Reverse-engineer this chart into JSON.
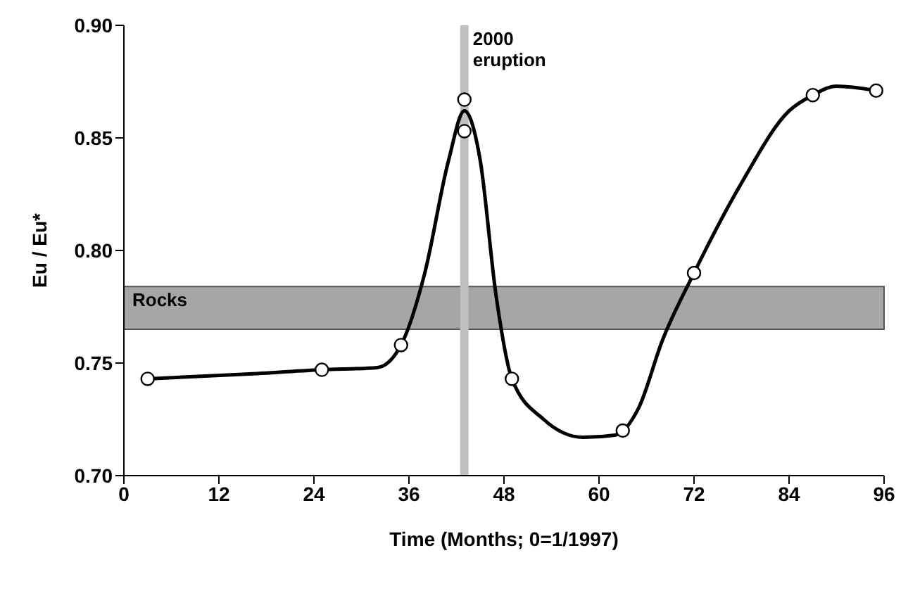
{
  "chart_data": {
    "type": "scatter",
    "xlabel": "Time (Months; 0=1/1997)",
    "ylabel": "Eu / Eu*",
    "xlim": [
      0,
      96
    ],
    "xticks": [
      0,
      12,
      24,
      36,
      48,
      60,
      72,
      84,
      96
    ],
    "ylim": [
      0.7,
      0.9
    ],
    "yticks": [
      {
        "value": 0.7,
        "label": "0.70"
      },
      {
        "value": 0.75,
        "label": "0.75"
      },
      {
        "value": 0.8,
        "label": "0.80"
      },
      {
        "value": 0.85,
        "label": "0.85"
      },
      {
        "value": 0.9,
        "label": "0.90"
      }
    ],
    "grid": false,
    "legend": false,
    "bands": [
      {
        "axis": "y",
        "from": 0.765,
        "to": 0.784,
        "label": "Rocks",
        "color": "#a6a6a6"
      }
    ],
    "ref_lines": [
      {
        "axis": "x",
        "value": 43,
        "label": "2000\neruption",
        "color": "#bfbfbf"
      }
    ],
    "series": [
      {
        "type": "line",
        "color": "#000000",
        "marker": "none",
        "line_style": "solid",
        "x": [
          3,
          15,
          25,
          32,
          35,
          38,
          41,
          43,
          45,
          47,
          49,
          53,
          58,
          62,
          65,
          68,
          72,
          78,
          84,
          87,
          90,
          95
        ],
        "values": [
          0.743,
          0.745,
          0.747,
          0.748,
          0.758,
          0.79,
          0.84,
          0.862,
          0.84,
          0.78,
          0.743,
          0.725,
          0.717,
          0.718,
          0.73,
          0.76,
          0.79,
          0.83,
          0.862,
          0.869,
          0.873,
          0.871
        ]
      },
      {
        "color": "#ffffff",
        "marker": "circle",
        "x": [
          3,
          25,
          35,
          43,
          43,
          49,
          63,
          72,
          87,
          95
        ],
        "values": [
          0.743,
          0.747,
          0.758,
          0.867,
          0.853,
          0.743,
          0.72,
          0.79,
          0.869,
          0.871
        ]
      }
    ]
  }
}
